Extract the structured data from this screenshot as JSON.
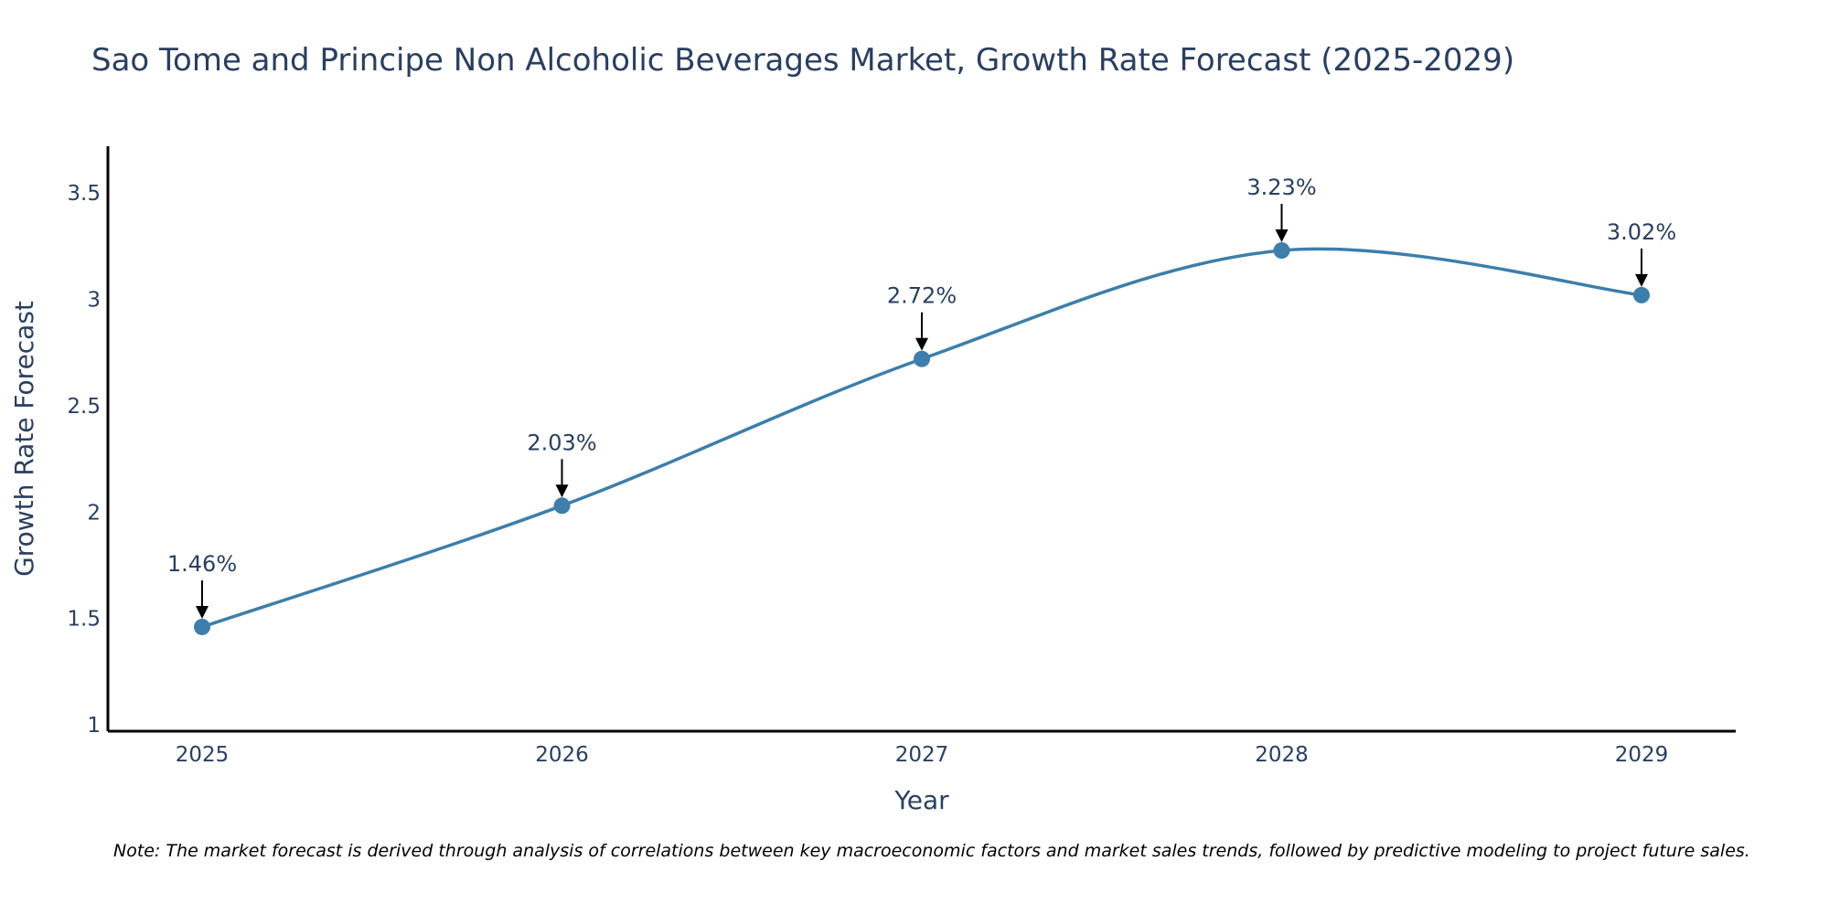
{
  "chart_data": {
    "type": "line",
    "title": "Sao Tome and Principe Non Alcoholic Beverages Market, Growth Rate Forecast (2025-2029)",
    "xlabel": "Year",
    "ylabel": "Growth Rate Forecast",
    "categories": [
      "2025",
      "2026",
      "2027",
      "2028",
      "2029"
    ],
    "series": [
      {
        "name": "Growth Rate Forecast",
        "values": [
          1.46,
          2.03,
          2.72,
          3.23,
          3.02
        ],
        "labels": [
          "1.46%",
          "2.03%",
          "2.72%",
          "3.23%",
          "3.02%"
        ]
      }
    ],
    "ylim": [
      0.97,
      3.72
    ],
    "yticks": [
      1,
      1.5,
      2,
      2.5,
      3,
      3.5
    ],
    "ytick_labels": [
      "1",
      "1.5",
      "2",
      "2.5",
      "3",
      "3.5"
    ],
    "grid": false,
    "line_shape": "spline",
    "line_color": "#3d7eaa",
    "marker_color": "#3d7eaa",
    "axis_color": "#000000",
    "text_color": "#2a3f5f"
  },
  "note": "Note: The market forecast is derived through analysis of correlations between key macroeconomic factors and market sales trends, followed by predictive modeling to project future sales."
}
